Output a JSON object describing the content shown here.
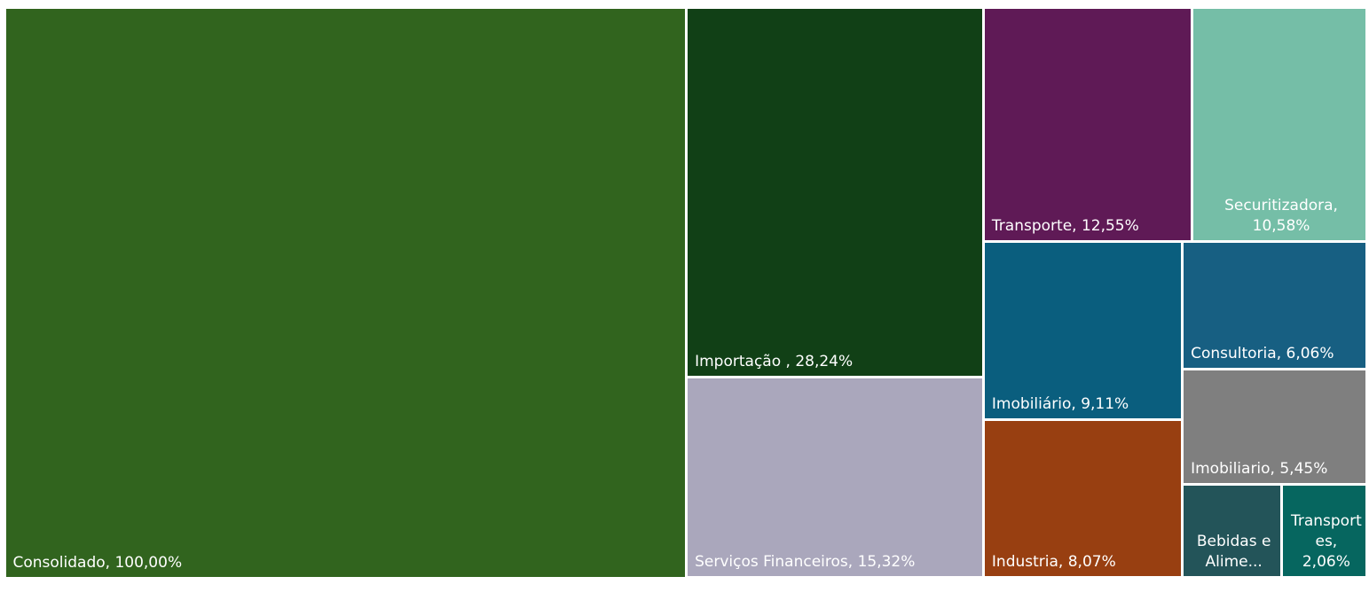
{
  "chart_data": {
    "type": "treemap",
    "values": [
      100,
      28.24,
      15.32,
      12.55,
      10.58,
      9.11,
      8.07,
      6.06,
      5.45,
      2.4,
      2.06
    ],
    "value_labels": [
      "Consolidado, 100,00%",
      "Importação , 28,24%",
      "Serviços Financeiros, 15,32%",
      "Transporte, 12,55%",
      "Securitizadora, 10,58%",
      "Imobiliário, 9,11%",
      "Industria, 8,07%",
      "Consultoria, 6,06%",
      "Imobiliario, 5,45%",
      "Bebidas e Alime...",
      "Transportes, 2,06%"
    ],
    "colors": [
      "#31641e",
      "#114016",
      "#aaa7bc",
      "#5f1a56",
      "#75bea7",
      "#0a5e7e",
      "#983f11",
      "#175f82",
      "#7f7f7f",
      "#235459",
      "#06665f"
    ]
  }
}
